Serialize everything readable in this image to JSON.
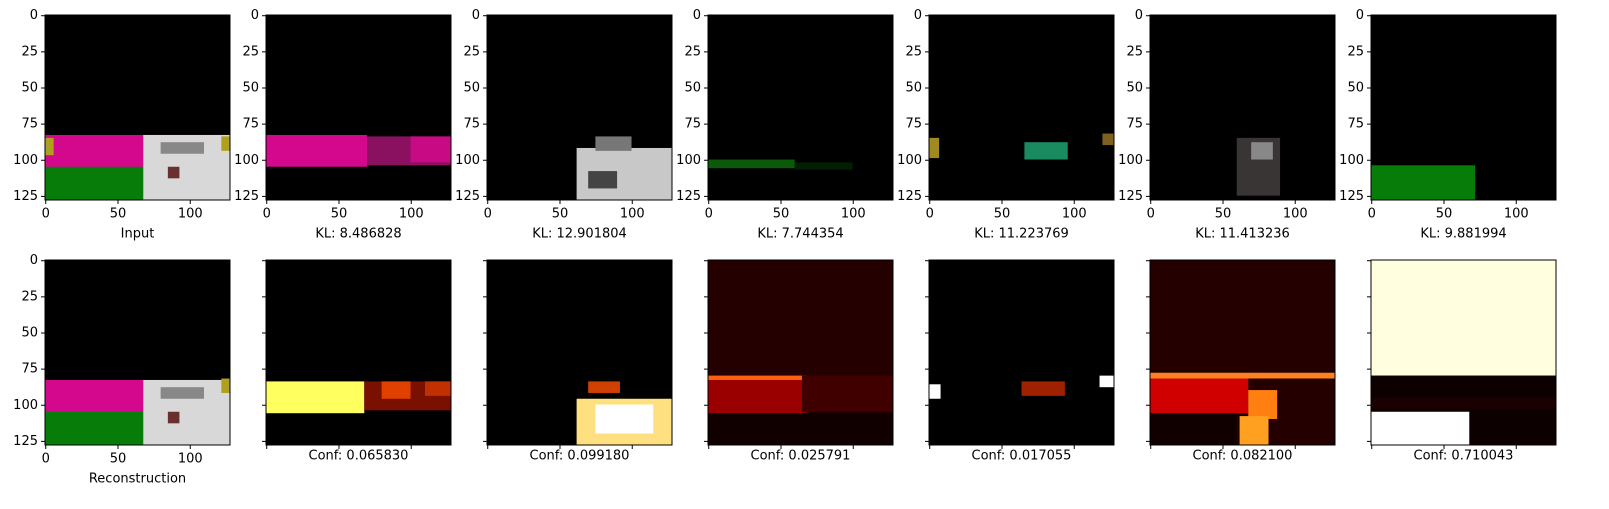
{
  "axes": {
    "xticks": [
      0,
      50,
      100
    ],
    "yticks": [
      0,
      25,
      50,
      75,
      100,
      125
    ]
  },
  "rows": [
    {
      "panels": [
        {
          "caption": "Input"
        },
        {
          "caption": "KL: 8.486828"
        },
        {
          "caption": "KL: 12.901804"
        },
        {
          "caption": "KL: 7.744354"
        },
        {
          "caption": "KL: 11.223769"
        },
        {
          "caption": "KL: 11.413236"
        },
        {
          "caption": "KL: 9.881994"
        }
      ]
    },
    {
      "panels": [
        {
          "caption": "Reconstruction"
        },
        {
          "caption": "Conf: 0.065830"
        },
        {
          "caption": "Conf: 0.099180"
        },
        {
          "caption": "Conf: 0.025791"
        },
        {
          "caption": "Conf: 0.017055"
        },
        {
          "caption": "Conf: 0.082100"
        },
        {
          "caption": "Conf: 0.710043"
        }
      ]
    }
  ]
}
